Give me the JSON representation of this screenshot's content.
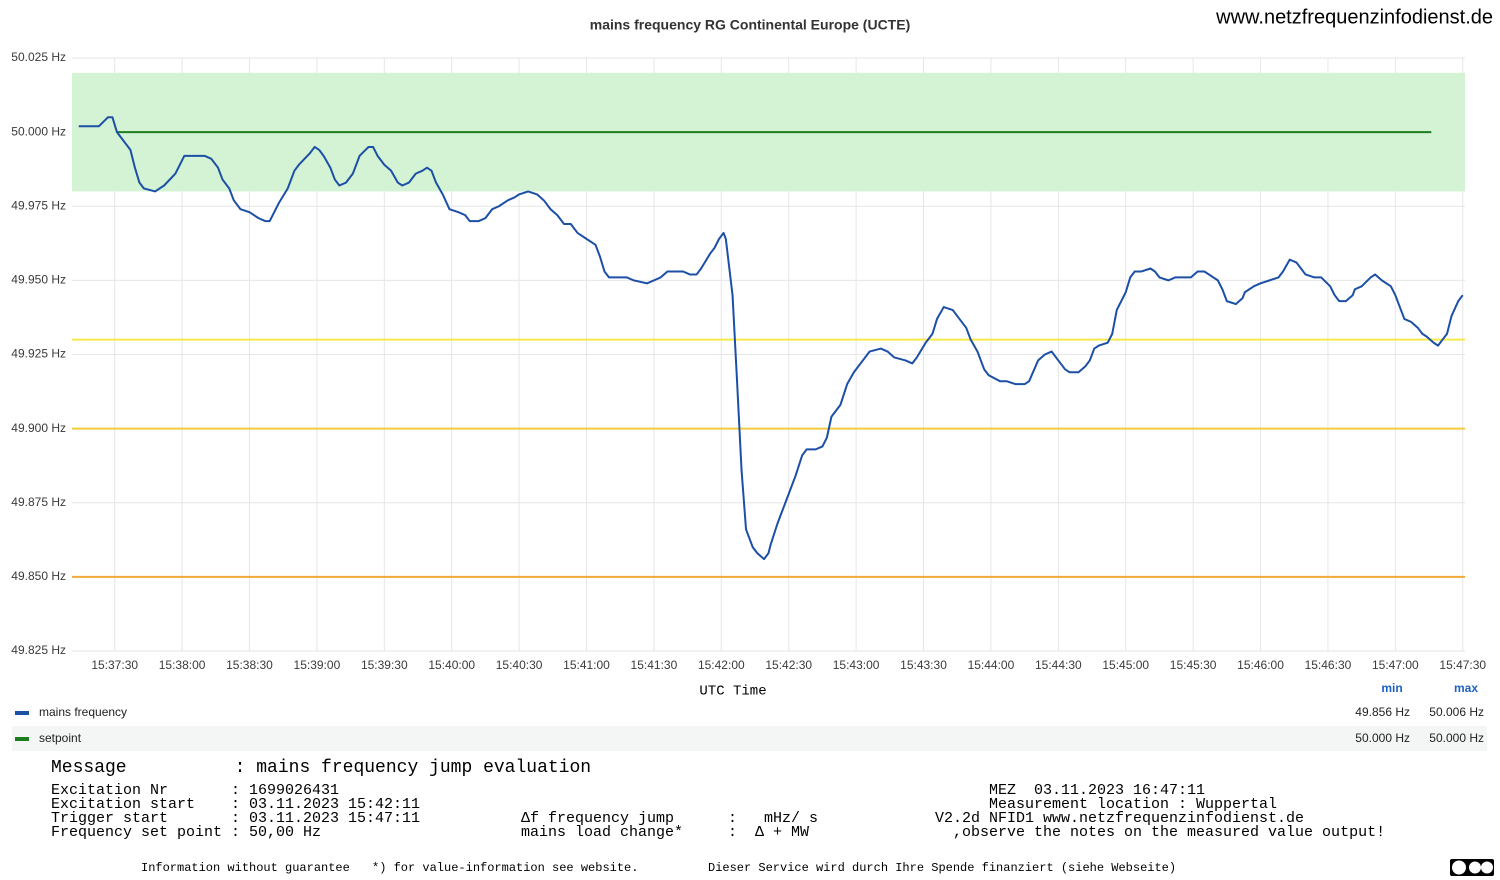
{
  "site": "www.netzfrequenzinfodienst.de",
  "chart_data": {
    "type": "line",
    "title": "mains frequency RG Continental Europe (UCTE)",
    "x_label": "UTC Time",
    "xlim": [
      "15:37:11",
      "15:47:31"
    ],
    "xticks": [
      "15:37:30",
      "15:38:00",
      "15:38:30",
      "15:39:00",
      "15:39:30",
      "15:40:00",
      "15:40:30",
      "15:41:00",
      "15:41:30",
      "15:42:00",
      "15:42:30",
      "15:43:00",
      "15:43:30",
      "15:44:00",
      "15:44:30",
      "15:45:00",
      "15:45:30",
      "15:46:00",
      "15:46:30",
      "15:47:00",
      "15:47:30"
    ],
    "ylim": [
      49.825,
      50.025
    ],
    "yticks": [
      {
        "value": 49.825,
        "label": "49.825 Hz"
      },
      {
        "value": 49.85,
        "label": "49.850 Hz"
      },
      {
        "value": 49.875,
        "label": "49.875 Hz"
      },
      {
        "value": 49.9,
        "label": "49.900 Hz"
      },
      {
        "value": 49.925,
        "label": "49.925 Hz"
      },
      {
        "value": 49.95,
        "label": "49.950 Hz"
      },
      {
        "value": 49.975,
        "label": "49.975 Hz"
      },
      {
        "value": 50.0,
        "label": "50.000 Hz"
      },
      {
        "value": 50.025,
        "label": "50.025 Hz"
      }
    ],
    "grid": true,
    "bands": [
      {
        "from": 49.98,
        "to": 50.02,
        "color": "#d3f3d4"
      }
    ],
    "thresholds": [
      {
        "value": 49.93,
        "color": "#f7e94a"
      },
      {
        "value": 49.9,
        "color": "#f2cc3c"
      },
      {
        "value": 49.85,
        "color": "#f2a93b"
      }
    ],
    "legend_columns": [
      "min",
      "max"
    ],
    "series": [
      {
        "name": "mains frequency",
        "color": "#1c4fa6",
        "legend_values": [
          "49.856 Hz",
          "50.006 Hz"
        ],
        "x": [
          "15:37:14",
          "15:37:19",
          "15:37:23",
          "15:37:27",
          "15:37:29",
          "15:37:31",
          "15:37:34",
          "15:37:37",
          "15:37:39",
          "15:37:41",
          "15:37:43",
          "15:37:48",
          "15:37:52",
          "15:37:57",
          "15:38:01",
          "15:38:06",
          "15:38:10",
          "15:38:13",
          "15:38:16",
          "15:38:18",
          "15:38:21",
          "15:38:23",
          "15:38:26",
          "15:38:30",
          "15:38:34",
          "15:38:37",
          "15:38:39",
          "15:38:41",
          "15:38:43",
          "15:38:47",
          "15:38:50",
          "15:38:52",
          "15:38:57",
          "15:38:59",
          "15:39:01",
          "15:39:03",
          "15:39:06",
          "15:39:08",
          "15:39:10",
          "15:39:13",
          "15:39:16",
          "15:39:19",
          "15:39:23",
          "15:39:25",
          "15:39:27",
          "15:39:30",
          "15:39:33",
          "15:39:36",
          "15:39:38",
          "15:39:41",
          "15:39:44",
          "15:39:47",
          "15:39:49",
          "15:39:51",
          "15:39:53",
          "15:39:56",
          "15:39:59",
          "15:40:03",
          "15:40:06",
          "15:40:08",
          "15:40:12",
          "15:40:15",
          "15:40:18",
          "15:40:21",
          "15:40:25",
          "15:40:28",
          "15:40:30",
          "15:40:34",
          "15:40:38",
          "15:40:41",
          "15:40:44",
          "15:40:47",
          "15:40:50",
          "15:40:53",
          "15:40:56",
          "15:41:00",
          "15:41:04",
          "15:41:06",
          "15:41:08",
          "15:41:10",
          "15:41:15",
          "15:41:18",
          "15:41:21",
          "15:41:27",
          "15:41:30",
          "15:41:33",
          "15:41:36",
          "15:41:39",
          "15:41:43",
          "15:41:46",
          "15:41:49",
          "15:41:51",
          "15:41:55",
          "15:41:57",
          "15:41:59",
          "15:42:01",
          "15:42:02",
          "15:42:05",
          "15:42:07",
          "15:42:09",
          "15:42:11",
          "15:42:14",
          "15:42:16",
          "15:42:19",
          "15:42:21",
          "15:42:22",
          "15:42:25",
          "15:42:28",
          "15:42:30",
          "15:42:33",
          "15:42:36",
          "15:42:38",
          "15:42:42",
          "15:42:45",
          "15:42:47",
          "15:42:49",
          "15:42:53",
          "15:42:56",
          "15:42:59",
          "15:43:03",
          "15:43:06",
          "15:43:11",
          "15:43:14",
          "15:43:17",
          "15:43:22",
          "15:43:25",
          "15:43:27",
          "15:43:31",
          "15:43:34",
          "15:43:36",
          "15:43:39",
          "15:43:43",
          "15:43:46",
          "15:43:49",
          "15:43:51",
          "15:43:54",
          "15:43:57",
          "15:43:59",
          "15:44:04",
          "15:44:07",
          "15:44:11",
          "15:44:15",
          "15:44:17",
          "15:44:21",
          "15:44:24",
          "15:44:27",
          "15:44:30",
          "15:44:33",
          "15:44:35",
          "15:44:39",
          "15:44:42",
          "15:44:44",
          "15:44:46",
          "15:44:48",
          "15:44:52",
          "15:44:54",
          "15:44:56",
          "15:45:00",
          "15:45:02",
          "15:45:04",
          "15:45:07",
          "15:45:11",
          "15:45:13",
          "15:45:15",
          "15:45:19",
          "15:45:22",
          "15:45:26",
          "15:45:29",
          "15:45:32",
          "15:45:35",
          "15:45:37",
          "15:45:41",
          "15:45:43",
          "15:45:45",
          "15:45:49",
          "15:45:52",
          "15:45:53",
          "15:45:57",
          "15:46:00",
          "15:46:04",
          "15:46:08",
          "15:46:10",
          "15:46:13",
          "15:46:16",
          "15:46:18",
          "15:46:20",
          "15:46:24",
          "15:46:27",
          "15:46:31",
          "15:46:33",
          "15:46:35",
          "15:46:38",
          "15:46:41",
          "15:46:42",
          "15:46:45",
          "15:46:49",
          "15:46:51",
          "15:46:54",
          "15:46:58",
          "15:47:00",
          "15:47:02",
          "15:47:04",
          "15:47:07",
          "15:47:10",
          "15:47:12",
          "15:47:14",
          "15:47:17",
          "15:47:19",
          "15:47:21",
          "15:47:23",
          "15:47:25",
          "15:47:28",
          "15:47:30"
        ],
        "values": [
          50.002,
          50.002,
          50.002,
          50.005,
          50.005,
          50.0,
          49.997,
          49.994,
          49.988,
          49.983,
          49.981,
          49.98,
          49.982,
          49.986,
          49.992,
          49.992,
          49.992,
          49.991,
          49.988,
          49.984,
          49.981,
          49.977,
          49.974,
          49.973,
          49.971,
          49.97,
          49.97,
          49.973,
          49.976,
          49.981,
          49.987,
          49.989,
          49.993,
          49.995,
          49.994,
          49.992,
          49.988,
          49.984,
          49.982,
          49.983,
          49.986,
          49.992,
          49.995,
          49.995,
          49.992,
          49.989,
          49.987,
          49.983,
          49.982,
          49.983,
          49.986,
          49.987,
          49.988,
          49.987,
          49.983,
          49.979,
          49.974,
          49.973,
          49.972,
          49.97,
          49.97,
          49.971,
          49.974,
          49.975,
          49.977,
          49.978,
          49.979,
          49.98,
          49.979,
          49.977,
          49.974,
          49.972,
          49.969,
          49.969,
          49.966,
          49.964,
          49.962,
          49.958,
          49.953,
          49.951,
          49.951,
          49.951,
          49.95,
          49.949,
          49.95,
          49.951,
          49.953,
          49.953,
          49.953,
          49.952,
          49.952,
          49.954,
          49.959,
          49.961,
          49.964,
          49.966,
          49.964,
          49.945,
          49.916,
          49.886,
          49.866,
          49.86,
          49.858,
          49.856,
          49.858,
          49.861,
          49.868,
          49.874,
          49.878,
          49.884,
          49.891,
          49.893,
          49.893,
          49.894,
          49.897,
          49.904,
          49.908,
          49.915,
          49.919,
          49.923,
          49.926,
          49.927,
          49.926,
          49.924,
          49.923,
          49.922,
          49.924,
          49.929,
          49.932,
          49.937,
          49.941,
          49.94,
          49.937,
          49.934,
          49.93,
          49.926,
          49.92,
          49.918,
          49.916,
          49.916,
          49.915,
          49.915,
          49.916,
          49.923,
          49.925,
          49.926,
          49.923,
          49.92,
          49.919,
          49.919,
          49.921,
          49.923,
          49.927,
          49.928,
          49.929,
          49.932,
          49.94,
          49.946,
          49.951,
          49.953,
          49.953,
          49.954,
          49.953,
          49.951,
          49.95,
          49.951,
          49.951,
          49.951,
          49.953,
          49.953,
          49.952,
          49.95,
          49.947,
          49.943,
          49.942,
          49.944,
          49.946,
          49.948,
          49.949,
          49.95,
          49.951,
          49.953,
          49.957,
          49.956,
          49.954,
          49.952,
          49.951,
          49.951,
          49.948,
          49.945,
          49.943,
          49.943,
          49.945,
          49.947,
          49.948,
          49.951,
          49.952,
          49.95,
          49.948,
          49.945,
          49.941,
          49.937,
          49.936,
          49.934,
          49.932,
          49.931,
          49.929,
          49.928,
          49.93,
          49.932,
          49.938,
          49.943,
          49.945
        ]
      },
      {
        "name": "setpoint",
        "color": "#1b7d1e",
        "legend_values": [
          "50.000 Hz",
          "50.000 Hz"
        ],
        "x": [
          "15:37:31",
          "15:47:16"
        ],
        "values": [
          50.0,
          50.0
        ]
      }
    ]
  },
  "panel": {
    "message": "Message          : mains frequency jump evaluation",
    "left": [
      "Excitation Nr       : 1699026431",
      "Excitation start    : 03.11.2023 15:42:11",
      "Trigger start       : 03.11.2023 15:47:11",
      "Frequency set point : 50,00 Hz"
    ],
    "middle": [
      "Δf frequency jump      :   mHz/ s",
      "mains load change*     :  Δ + MW"
    ],
    "right": [
      "MEZ  03.11.2023 16:47:11",
      "Measurement location : Wuppertal"
    ],
    "version": "V2.2d NFID1 www.netzfrequenzinfodienst.de",
    "notice": ",observe the notes on the measured value output!",
    "footer": [
      "Information without guarantee",
      "*) for value-information see website.",
      "Dieser Service wird durch Ihre Spende finanziert (siehe Webseite)"
    ]
  }
}
